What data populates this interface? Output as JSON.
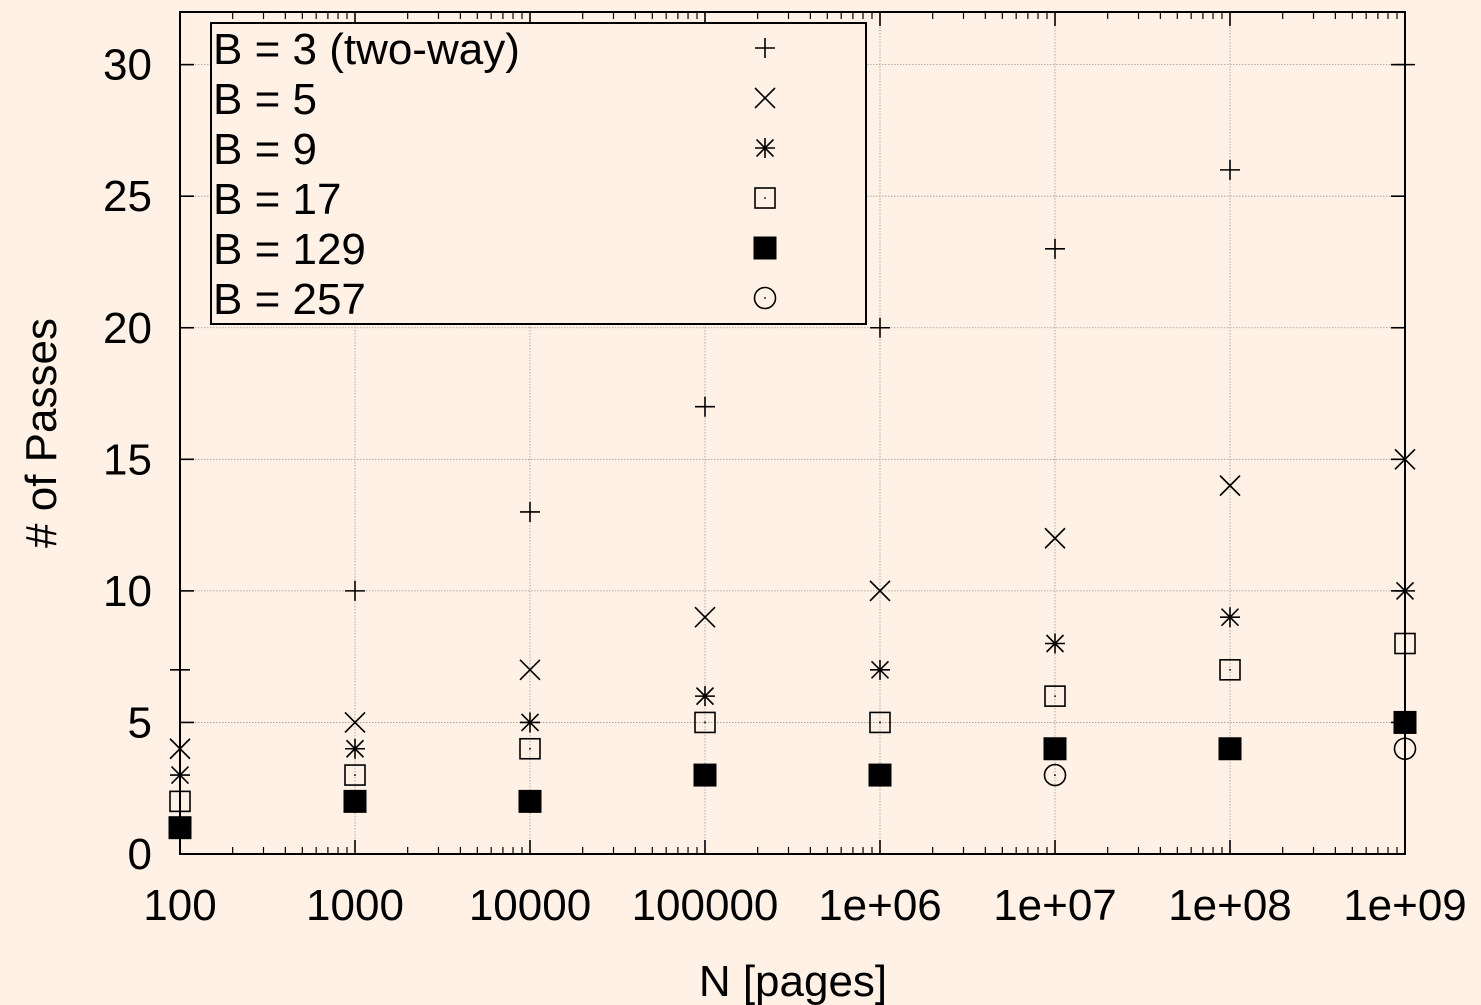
{
  "chart_data": {
    "type": "scatter",
    "xlabel": "N [pages]",
    "ylabel": "# of Passes",
    "x_scale": "log",
    "x_range": [
      100,
      1000000000
    ],
    "ylim": [
      0,
      32
    ],
    "grid": true,
    "legend_position": "top-left",
    "x_tick_labels": [
      "100",
      "1000",
      "10000",
      "100000",
      "1e+06",
      "1e+07",
      "1e+08",
      "1e+09"
    ],
    "y_tick_labels": [
      "0",
      "5",
      "10",
      "15",
      "20",
      "25",
      "30"
    ],
    "x": [
      100,
      1000,
      10000,
      100000,
      1000000,
      10000000,
      100000000,
      1000000000
    ],
    "series": [
      {
        "name": "B = 3 (two-way)",
        "marker": "plus",
        "values": [
          7,
          10,
          13,
          17,
          20,
          23,
          26,
          30
        ]
      },
      {
        "name": "B = 5",
        "marker": "cross",
        "values": [
          4,
          5,
          7,
          9,
          10,
          12,
          14,
          15
        ]
      },
      {
        "name": "B = 9",
        "marker": "star",
        "values": [
          3,
          4,
          5,
          6,
          7,
          8,
          9,
          10
        ]
      },
      {
        "name": "B = 17",
        "marker": "open-square",
        "values": [
          2,
          3,
          4,
          5,
          5,
          6,
          7,
          8
        ]
      },
      {
        "name": "B = 129",
        "marker": "filled-square",
        "values": [
          1,
          2,
          2,
          3,
          3,
          4,
          4,
          5
        ]
      },
      {
        "name": "B = 257",
        "marker": "open-circle",
        "values": [
          1,
          2,
          2,
          3,
          3,
          3,
          4,
          4
        ]
      }
    ]
  }
}
